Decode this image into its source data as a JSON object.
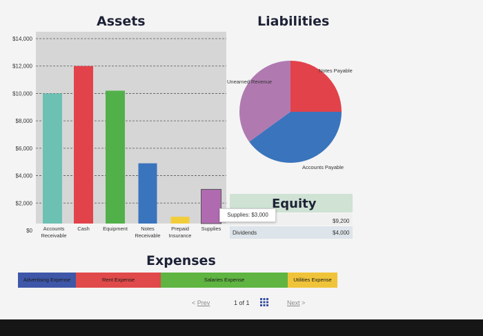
{
  "assets": {
    "title": "Assets",
    "y_ticks": [
      "$14,000",
      "$12,000",
      "$10,000",
      "$8,000",
      "$6,000",
      "$4,000",
      "$2,000",
      "$0"
    ],
    "categories": [
      [
        "Accounts",
        "Receivable"
      ],
      [
        "Cash"
      ],
      [
        "Equipment"
      ],
      [
        "Notes",
        "Receivable"
      ],
      [
        "Prepaid",
        "Insurance"
      ],
      [
        "Supplies"
      ]
    ],
    "colors": [
      "#6cc1b3",
      "#e2424a",
      "#52b04a",
      "#3a74bc",
      "#f2cd3a",
      "#b06bb0"
    ]
  },
  "liabilities": {
    "title": "Liabilities",
    "slice_labels": [
      "Notes Payable",
      "Accounts Payable",
      "Unearned Revenue"
    ],
    "colors": [
      "#e2424a",
      "#3a74bc",
      "#b07ab0"
    ]
  },
  "chart_data": [
    {
      "type": "bar",
      "title": "Assets",
      "categories": [
        "Accounts Receivable",
        "Cash",
        "Equipment",
        "Notes Receivable",
        "Prepaid Insurance",
        "Supplies"
      ],
      "values": [
        10000,
        12000,
        10200,
        4900,
        1000,
        3000
      ],
      "ylim": [
        0,
        14000
      ],
      "grid": true
    },
    {
      "type": "pie",
      "title": "Liabilities",
      "categories": [
        "Notes Payable",
        "Accounts Payable",
        "Unearned Revenue"
      ],
      "values": [
        25,
        40,
        35
      ]
    }
  ],
  "equity": {
    "title": "Equity",
    "value1": "$9,200",
    "dividends_label": "Dividends",
    "value2": "$4,000"
  },
  "tooltip": "Supplies: $3,000",
  "expenses": {
    "title": "Expenses",
    "segments": [
      "Advertising Expense",
      "Rent Expense",
      "Salaries Expense",
      "Utilities Expense"
    ]
  },
  "pagination": {
    "prev": "Prev",
    "page": "1 of 1",
    "next": "Next"
  }
}
